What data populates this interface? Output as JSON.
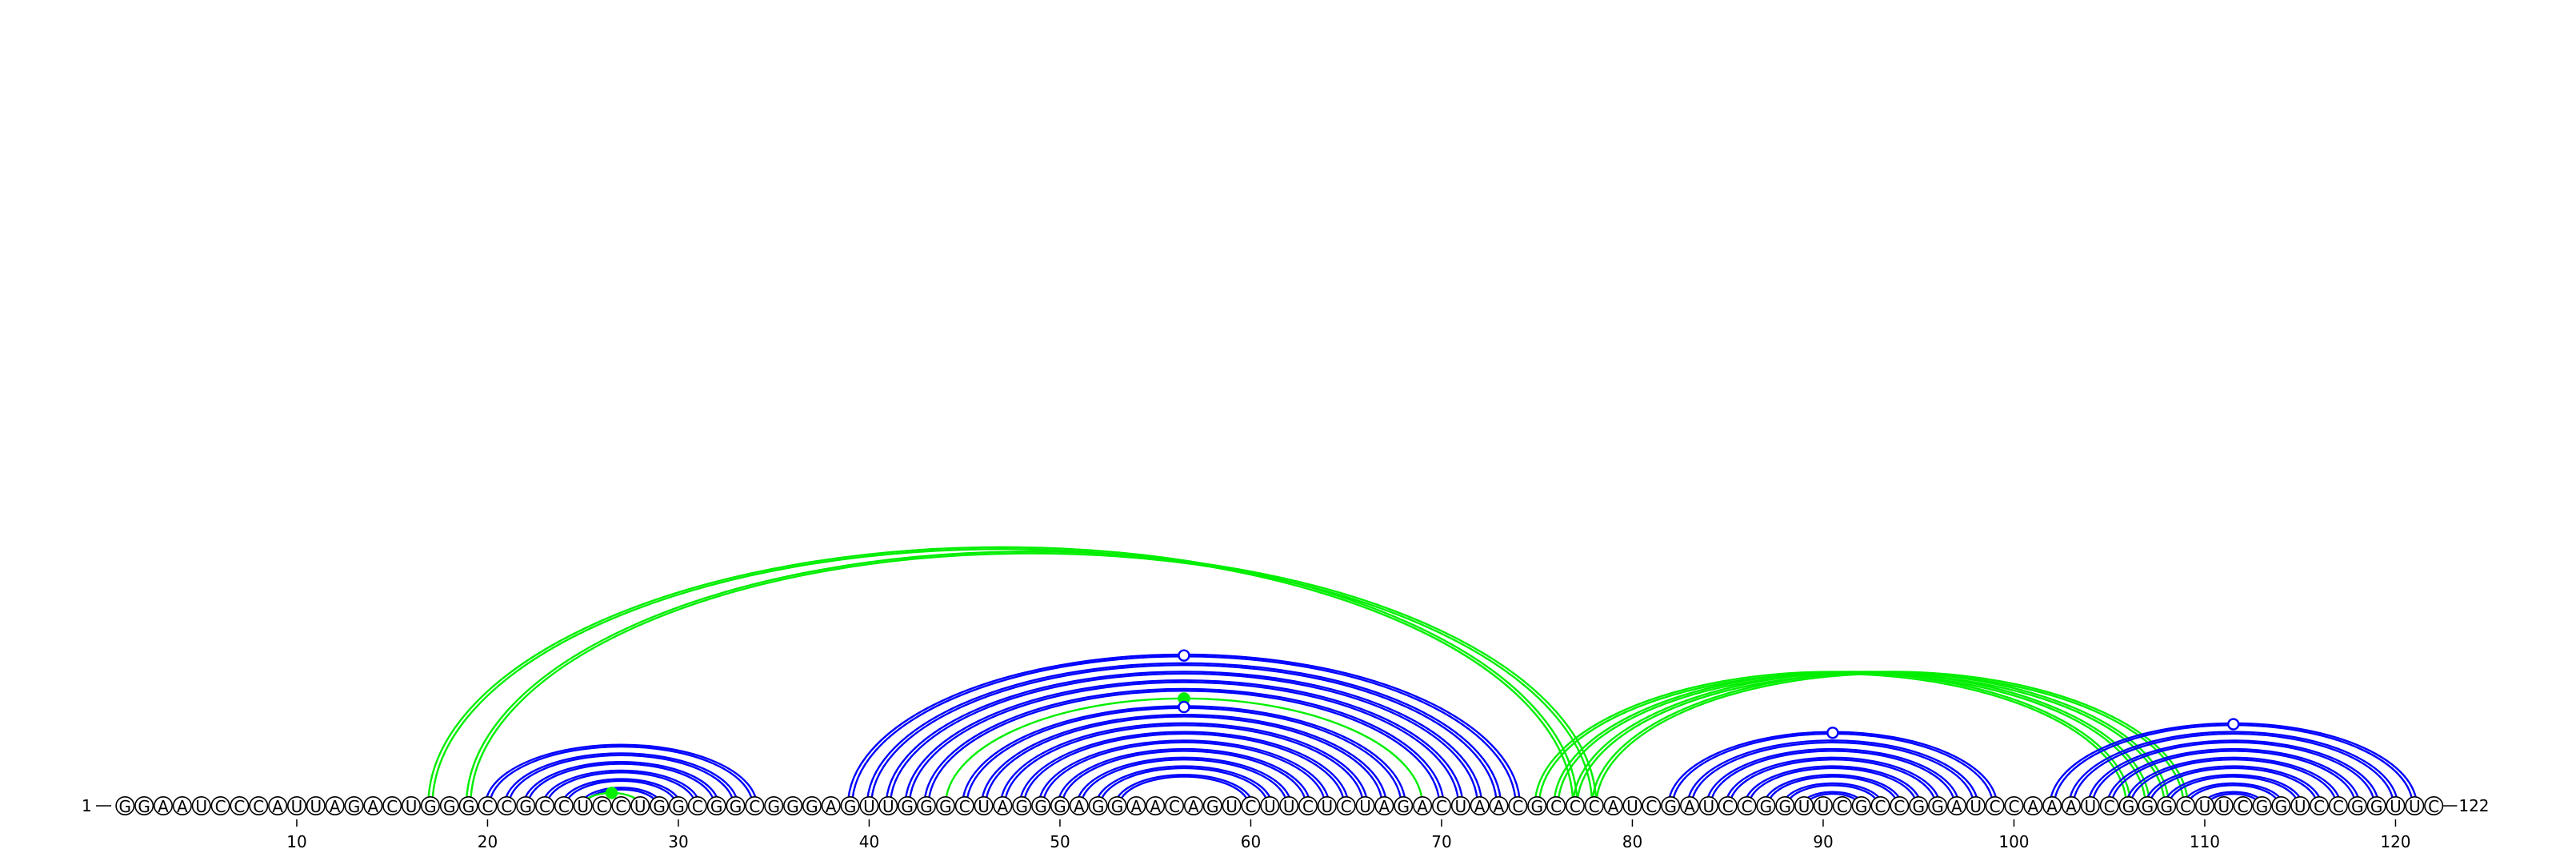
{
  "sequence": "GGAAUCCCAUUAGACUGGGCCGCCUCCUGGCGGCGGGAGUUGGGCUAGGGAGGAACAGUCUUCUCUAGACUAACGCCCAUCGAUCCGGUUCGCCGGAUCCAAAUCGGGCUUCGGUCCGGUUC",
  "start_label": "1",
  "end_label": "122",
  "tick_labels": [
    10,
    20,
    30,
    40,
    50,
    60,
    70,
    80,
    90,
    100,
    110,
    120
  ],
  "colors": {
    "blue": "#0000ff",
    "green": "#00ee00",
    "text": "#000000"
  },
  "arc_groups": [
    {
      "name": "hairpin-1",
      "color": "blue",
      "style": "double",
      "pairs": [
        [
          20,
          34
        ],
        [
          21,
          33
        ],
        [
          22,
          32
        ],
        [
          23,
          31
        ],
        [
          24,
          30
        ],
        [
          25,
          29
        ]
      ]
    },
    {
      "name": "hairpin-1-inner",
      "color": "green",
      "style": "single",
      "pairs": [
        [
          25,
          28
        ]
      ],
      "dot": "filled"
    },
    {
      "name": "long-range-1",
      "color": "green",
      "style": "double",
      "pairs": [
        [
          17,
          77
        ],
        [
          19,
          78
        ]
      ]
    },
    {
      "name": "multiloop-outer",
      "color": "blue",
      "style": "double",
      "pairs": [
        [
          39,
          74
        ],
        [
          40,
          73
        ],
        [
          41,
          72
        ],
        [
          42,
          71
        ],
        [
          43,
          70
        ]
      ],
      "dot": "open"
    },
    {
      "name": "multiloop-inner-green",
      "color": "green",
      "style": "single",
      "pairs": [
        [
          44,
          69
        ]
      ],
      "dot": "filled"
    },
    {
      "name": "multiloop-inner",
      "color": "blue",
      "style": "double",
      "pairs": [
        [
          45,
          68
        ],
        [
          46,
          67
        ],
        [
          47,
          66
        ],
        [
          48,
          65
        ],
        [
          49,
          64
        ],
        [
          50,
          63
        ],
        [
          51,
          62
        ],
        [
          52,
          61
        ],
        [
          53,
          60
        ]
      ],
      "dot": "open"
    },
    {
      "name": "long-range-2",
      "color": "green",
      "style": "double",
      "pairs": [
        [
          76,
          107
        ],
        [
          77,
          108
        ],
        [
          78,
          109
        ],
        [
          75,
          106
        ]
      ]
    },
    {
      "name": "hairpin-2",
      "color": "blue",
      "style": "double",
      "pairs": [
        [
          82,
          99
        ],
        [
          83,
          98
        ],
        [
          84,
          97
        ],
        [
          85,
          96
        ],
        [
          86,
          95
        ],
        [
          87,
          94
        ],
        [
          88,
          93
        ],
        [
          89,
          92
        ]
      ],
      "dot": "open"
    },
    {
      "name": "hairpin-3",
      "color": "blue",
      "style": "double",
      "pairs": [
        [
          102,
          121
        ],
        [
          103,
          120
        ],
        [
          104,
          119
        ],
        [
          105,
          118
        ],
        [
          106,
          117
        ],
        [
          107,
          116
        ],
        [
          108,
          115
        ],
        [
          109,
          114
        ],
        [
          110,
          113
        ]
      ],
      "dot": "open"
    }
  ]
}
